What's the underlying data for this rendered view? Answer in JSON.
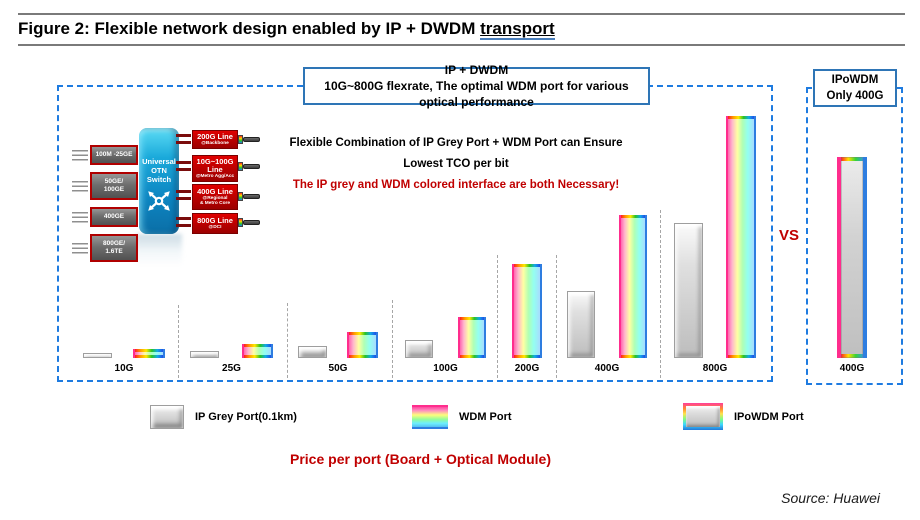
{
  "figure": {
    "title_prefix": "Figure 2: Flexible network design enabled by IP + DWDM ",
    "title_underlined": "transport",
    "vs_label": "VS",
    "price_caption": "Price per port (Board + Optical Module)",
    "source": "Source: Huawei"
  },
  "main_panel": {
    "header_line1": "IP + DWDM",
    "header_line2": "10G~800G flexrate, The optimal WDM port for various optical performance",
    "note_line1": "Flexible Combination of IP Grey Port + WDM Port can Ensure",
    "note_line2": "Lowest TCO per bit",
    "note_line3": "The IP grey and WDM colored interface are both Necessary!"
  },
  "right_panel": {
    "header_line1": "IPoWDM",
    "header_line2": "Only 400G",
    "category": "400G"
  },
  "topology": {
    "switch_label": "Universal\nOTN\nSwitch",
    "clients": [
      {
        "label": "100M -25GE"
      },
      {
        "label": "50GE/\n100GE"
      },
      {
        "label": "400GE"
      },
      {
        "label": "800GE/\n1.6TE"
      }
    ],
    "lines": [
      {
        "label": "200G Line",
        "sub": "@Backbone"
      },
      {
        "label": "10G~100G Line",
        "sub": "@Metro Agg/Acc"
      },
      {
        "label": "400G Line",
        "sub": "@Regional\n& Metro Core"
      },
      {
        "label": "800G Line",
        "sub": "@DCI"
      }
    ]
  },
  "chart_data": {
    "type": "bar",
    "title": "Price per port (Board + Optical Module)",
    "categories": [
      "10G",
      "25G",
      "50G",
      "100G",
      "200G",
      "400G",
      "800G"
    ],
    "series": [
      {
        "name": "IP Grey Port(0.1km)",
        "values": [
          5,
          7,
          12,
          18,
          null,
          67,
          135
        ]
      },
      {
        "name": "WDM Port",
        "values": [
          9,
          14,
          26,
          41,
          94,
          143,
          242
        ]
      }
    ],
    "comparison_panel": {
      "panel_label": "IPoWDM Only 400G",
      "category": "400G",
      "series": "IPoWDM Port",
      "value": 201
    },
    "ylabel": "Price per port (relative height, axis unlabeled)",
    "grid": false,
    "legend_position": "bottom"
  },
  "legend": [
    {
      "name": "IP Grey Port(0.1km)",
      "type": "grey"
    },
    {
      "name": "WDM Port",
      "type": "wdm"
    },
    {
      "name": "IPoWDM Port",
      "type": "ipowdm"
    }
  ],
  "colors": {
    "dashed_border": "#1e7be0",
    "header_border": "#2e75b6",
    "red_text": "#c00000",
    "bar_pink_edge": "#ff2d8d",
    "bar_blue_edge": "#2e7de0",
    "switch_cyan": "#18a7d9",
    "line_box_red": "#b80000"
  }
}
